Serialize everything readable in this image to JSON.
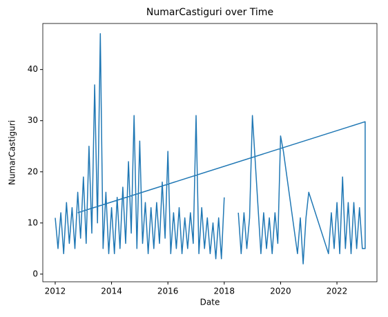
{
  "chart_data": {
    "type": "line",
    "title": "NumarCastiguri over Time",
    "x_label": "Date",
    "y_label": "NumarCastiguri",
    "x": [
      2012.0,
      2012.1,
      2012.2,
      2012.3,
      2012.4,
      2012.5,
      2012.6,
      2012.7,
      2012.8,
      2012.9,
      2013.0,
      2013.1,
      2013.2,
      2013.3,
      2013.4,
      2013.5,
      2013.6,
      2013.7,
      2013.8,
      2013.9,
      2014.0,
      2014.1,
      2014.2,
      2014.3,
      2014.4,
      2014.5,
      2014.6,
      2014.7,
      2014.8,
      2014.9,
      2015.0,
      2015.1,
      2015.2,
      2015.3,
      2015.4,
      2015.5,
      2015.6,
      2015.7,
      2015.8,
      2015.9,
      2016.0,
      2016.1,
      2016.2,
      2016.3,
      2016.4,
      2016.5,
      2016.6,
      2016.7,
      2016.8,
      2016.9,
      2017.0,
      2017.1,
      2017.2,
      2017.3,
      2017.4,
      2017.5,
      2017.6,
      2017.7,
      2017.8,
      2017.9,
      2018.0,
      2018.25,
      2018.5,
      2018.6,
      2018.7,
      2018.8,
      2018.9,
      2019.0,
      2019.3,
      2019.4,
      2019.5,
      2019.6,
      2019.7,
      2019.8,
      2019.9,
      2020.0,
      2020.1,
      2020.6,
      2020.7,
      2020.8,
      2020.9,
      2021.0,
      2021.7,
      2021.8,
      2021.9,
      2022.0,
      2022.1,
      2022.2,
      2022.3,
      2022.4,
      2022.5,
      2022.6,
      2022.7,
      2022.8,
      2022.9,
      2023.0,
      2023.0,
      2012.8
    ],
    "series": [
      {
        "name": "NumarCastiguri",
        "color": "#1f77b4",
        "values": [
          11,
          5,
          12,
          4,
          14,
          6,
          13,
          5,
          16,
          7,
          19,
          6,
          25,
          8,
          37,
          10,
          47,
          5,
          16,
          4,
          13,
          4,
          15,
          5,
          17,
          6,
          22,
          8,
          31,
          5,
          26,
          6,
          14,
          4,
          13,
          5,
          14,
          6,
          18,
          7,
          24,
          4,
          12,
          5,
          13,
          4,
          11,
          5,
          12,
          6,
          31,
          4,
          13,
          5,
          11,
          4,
          10,
          3,
          11,
          3,
          15,
          null,
          12,
          4,
          12,
          5,
          11,
          31,
          4,
          12,
          5,
          11,
          4,
          12,
          6,
          27,
          24,
          4,
          11,
          2,
          11,
          16,
          4,
          12,
          5,
          14,
          4,
          19,
          5,
          14,
          4,
          14,
          5,
          13,
          5,
          5,
          29.8,
          12
        ]
      }
    ],
    "xlim": [
      2011.56,
      2023.42
    ],
    "ylim": [
      -1.5,
      49
    ],
    "xticks": [
      2012,
      2014,
      2016,
      2018,
      2020,
      2022
    ],
    "yticks": [
      0,
      10,
      20,
      30,
      40
    ]
  }
}
